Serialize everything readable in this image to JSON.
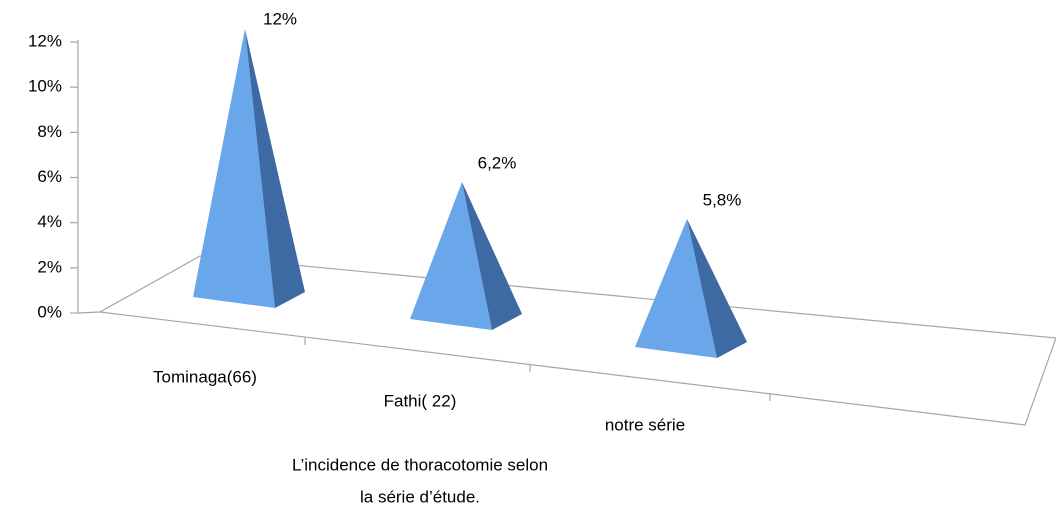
{
  "chart_data": {
    "type": "pyramid",
    "title": [
      "L’incidence de thoracotomie selon",
      "la série d’étude."
    ],
    "categories": [
      "Tominaga(66)",
      "Fathi( 22)",
      "notre série"
    ],
    "values": [
      12,
      6.2,
      5.8
    ],
    "value_labels": [
      "12%",
      "6,2%",
      "5,8%"
    ],
    "color": "#5b9bd5",
    "ylim": [
      0,
      12
    ],
    "yticks": [
      {
        "value": 0,
        "label": "0%"
      },
      {
        "value": 2,
        "label": "2%"
      },
      {
        "value": 4,
        "label": "4%"
      },
      {
        "value": 6,
        "label": "6%"
      },
      {
        "value": 8,
        "label": "8%"
      },
      {
        "value": 10,
        "label": "10%"
      },
      {
        "value": 12,
        "label": "12%"
      }
    ]
  }
}
